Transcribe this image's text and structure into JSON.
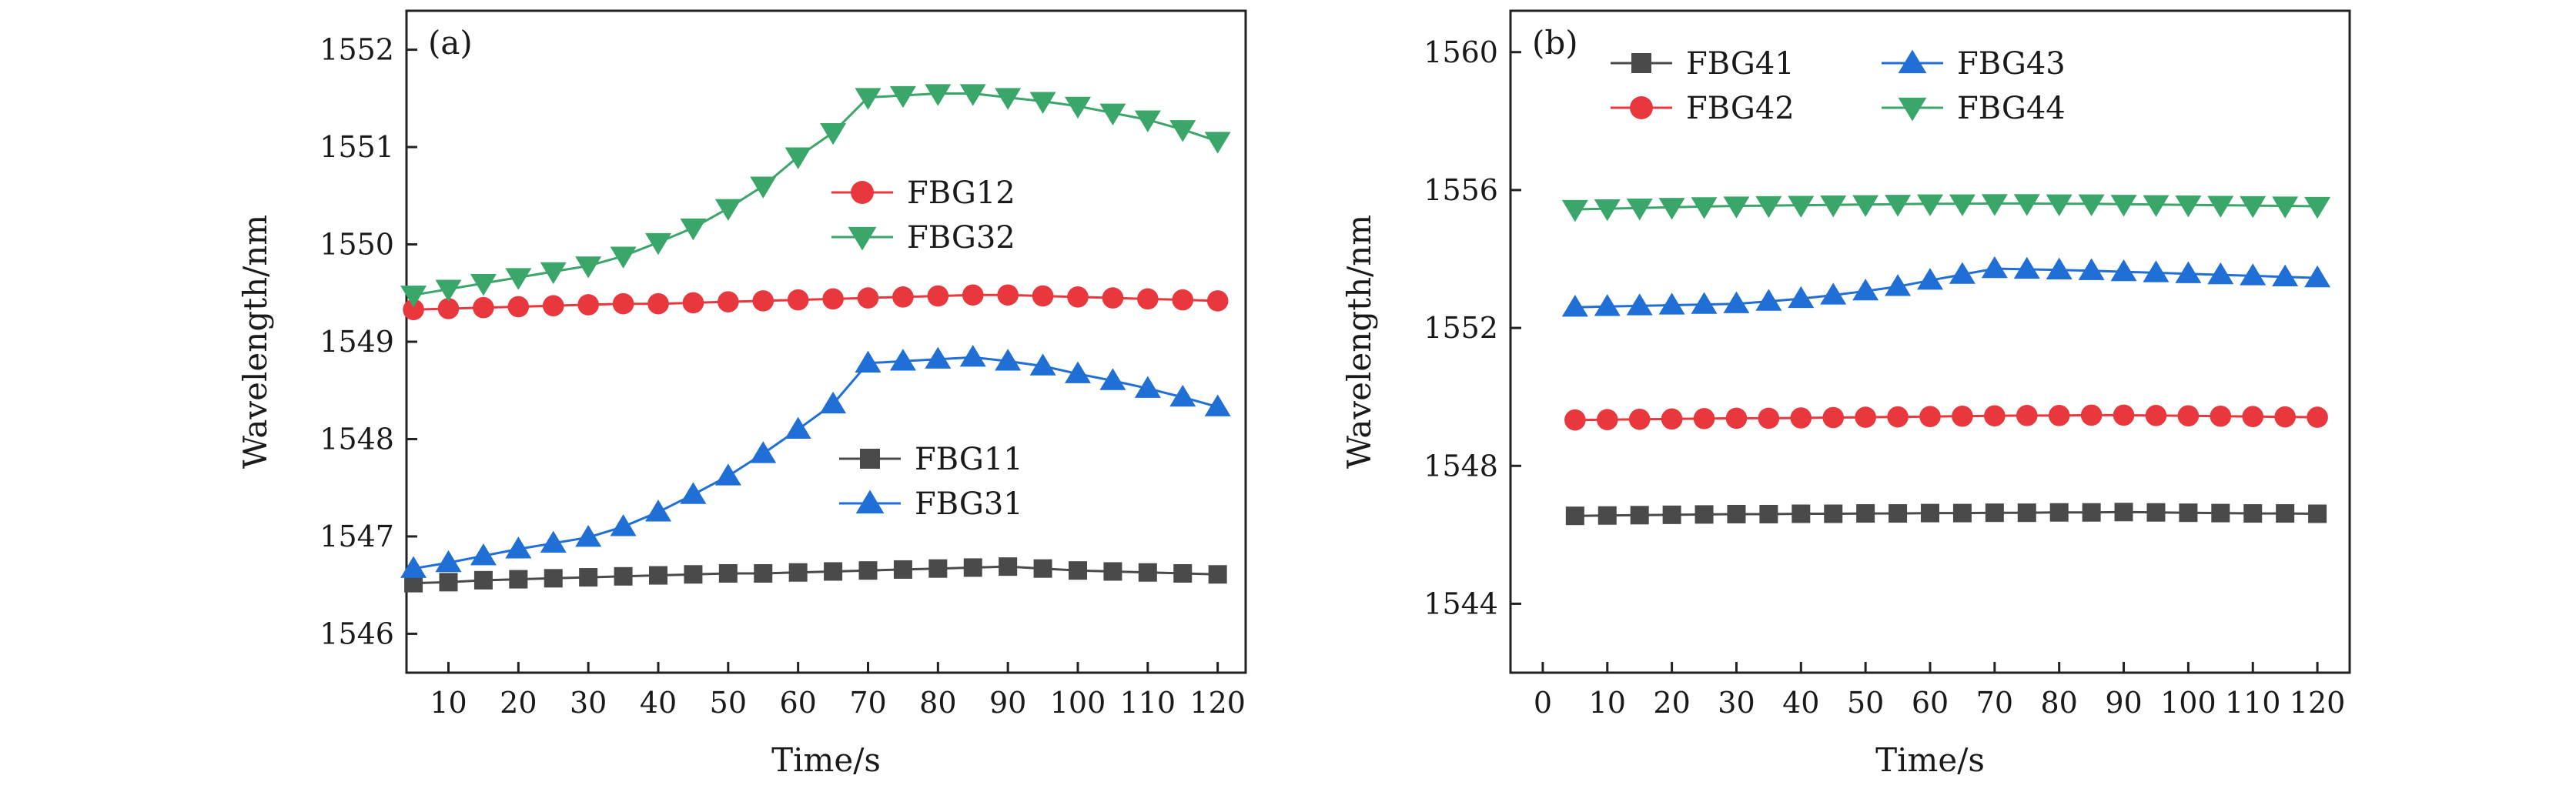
{
  "chart_data": [
    {
      "type": "line",
      "panel_label": "(a)",
      "xlabel": "Time/s",
      "ylabel": "Wavelength/nm",
      "xlim": [
        4,
        124
      ],
      "ylim": [
        1545.6,
        1552.4
      ],
      "xticks": [
        10,
        20,
        30,
        40,
        50,
        60,
        70,
        80,
        90,
        100,
        110,
        120
      ],
      "yticks": [
        1546,
        1547,
        1548,
        1549,
        1550,
        1551,
        1552
      ],
      "x": [
        5,
        10,
        15,
        20,
        25,
        30,
        35,
        40,
        45,
        50,
        55,
        60,
        65,
        70,
        75,
        80,
        85,
        90,
        95,
        100,
        105,
        110,
        115,
        120
      ],
      "series": [
        {
          "name": "FBG11",
          "color": "#4a4a4a",
          "marker": "square",
          "values": [
            1546.52,
            1546.53,
            1546.55,
            1546.56,
            1546.57,
            1546.58,
            1546.59,
            1546.6,
            1546.61,
            1546.62,
            1546.62,
            1546.63,
            1546.64,
            1546.65,
            1546.66,
            1546.67,
            1546.68,
            1546.69,
            1546.67,
            1546.65,
            1546.64,
            1546.63,
            1546.62,
            1546.61
          ]
        },
        {
          "name": "FBG31",
          "color": "#1f6fd6",
          "marker": "triangle-up",
          "values": [
            1546.67,
            1546.73,
            1546.8,
            1546.87,
            1546.93,
            1546.99,
            1547.1,
            1547.25,
            1547.43,
            1547.62,
            1547.85,
            1548.1,
            1548.36,
            1548.78,
            1548.8,
            1548.82,
            1548.84,
            1548.8,
            1548.75,
            1548.67,
            1548.6,
            1548.52,
            1548.43,
            1548.33
          ]
        },
        {
          "name": "FBG12",
          "color": "#e8373d",
          "marker": "circle",
          "values": [
            1549.33,
            1549.34,
            1549.35,
            1549.36,
            1549.37,
            1549.38,
            1549.39,
            1549.39,
            1549.4,
            1549.41,
            1549.42,
            1549.43,
            1549.44,
            1549.45,
            1549.46,
            1549.47,
            1549.48,
            1549.48,
            1549.47,
            1549.46,
            1549.45,
            1549.44,
            1549.43,
            1549.42
          ]
        },
        {
          "name": "FBG32",
          "color": "#3aa66a",
          "marker": "triangle-down",
          "values": [
            1549.48,
            1549.54,
            1549.6,
            1549.66,
            1549.72,
            1549.78,
            1549.88,
            1550.02,
            1550.17,
            1550.37,
            1550.6,
            1550.9,
            1551.15,
            1551.51,
            1551.53,
            1551.55,
            1551.55,
            1551.51,
            1551.47,
            1551.42,
            1551.35,
            1551.28,
            1551.18,
            1551.06
          ]
        }
      ],
      "legends": [
        {
          "items": [
            "FBG12",
            "FBG32"
          ]
        },
        {
          "items": [
            "FBG11",
            "FBG31"
          ]
        }
      ]
    },
    {
      "type": "line",
      "panel_label": "(b)",
      "xlabel": "Time/s",
      "ylabel": "Wavelength/nm",
      "xlim": [
        -5,
        125
      ],
      "ylim": [
        1542.0,
        1561.2
      ],
      "xticks": [
        0,
        10,
        20,
        30,
        40,
        50,
        60,
        70,
        80,
        90,
        100,
        110,
        120
      ],
      "yticks": [
        1544,
        1548,
        1552,
        1556,
        1560
      ],
      "x": [
        5,
        10,
        15,
        20,
        25,
        30,
        35,
        40,
        45,
        50,
        55,
        60,
        65,
        70,
        75,
        80,
        85,
        90,
        95,
        100,
        105,
        110,
        115,
        120
      ],
      "series": [
        {
          "name": "FBG41",
          "color": "#4a4a4a",
          "marker": "square",
          "values": [
            1546.55,
            1546.56,
            1546.57,
            1546.58,
            1546.59,
            1546.6,
            1546.6,
            1546.61,
            1546.61,
            1546.62,
            1546.62,
            1546.63,
            1546.63,
            1546.64,
            1546.64,
            1546.65,
            1546.65,
            1546.66,
            1546.65,
            1546.64,
            1546.63,
            1546.62,
            1546.62,
            1546.61
          ]
        },
        {
          "name": "FBG42",
          "color": "#e8373d",
          "marker": "circle",
          "values": [
            1549.33,
            1549.34,
            1549.35,
            1549.36,
            1549.37,
            1549.38,
            1549.38,
            1549.39,
            1549.4,
            1549.41,
            1549.42,
            1549.43,
            1549.44,
            1549.45,
            1549.46,
            1549.46,
            1549.47,
            1549.47,
            1549.46,
            1549.45,
            1549.44,
            1549.43,
            1549.42,
            1549.41
          ]
        },
        {
          "name": "FBG43",
          "color": "#1f6fd6",
          "marker": "triangle-up",
          "values": [
            1552.6,
            1552.62,
            1552.64,
            1552.66,
            1552.68,
            1552.7,
            1552.77,
            1552.85,
            1552.95,
            1553.07,
            1553.2,
            1553.38,
            1553.55,
            1553.72,
            1553.7,
            1553.68,
            1553.66,
            1553.63,
            1553.6,
            1553.57,
            1553.54,
            1553.51,
            1553.48,
            1553.45
          ]
        },
        {
          "name": "FBG44",
          "color": "#3aa66a",
          "marker": "triangle-down",
          "values": [
            1555.44,
            1555.46,
            1555.48,
            1555.5,
            1555.52,
            1555.54,
            1555.55,
            1555.56,
            1555.57,
            1555.58,
            1555.59,
            1555.6,
            1555.6,
            1555.61,
            1555.61,
            1555.6,
            1555.6,
            1555.59,
            1555.58,
            1555.57,
            1555.56,
            1555.55,
            1555.54,
            1555.53
          ]
        }
      ],
      "legends": [
        {
          "items": [
            "FBG41",
            "FBG43",
            "FBG42",
            "FBG44"
          ]
        }
      ]
    }
  ]
}
